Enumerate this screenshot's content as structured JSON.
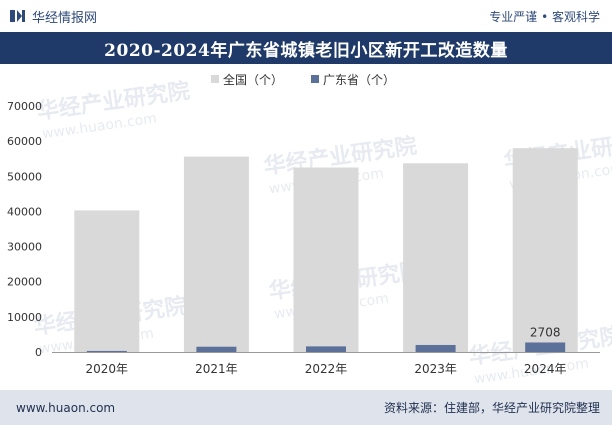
{
  "header": {
    "brand": "华经情报网",
    "slogan": "专业严谨 • 客观科学"
  },
  "title": "2020-2024年广东省城镇老旧小区新开工改造数量",
  "footer": {
    "website": "www.huaon.com",
    "source": "资料来源：住建部，华经产业研究院整理"
  },
  "watermark": {
    "name": "华经产业研究院",
    "url": "www.huaon.com"
  },
  "colors": {
    "national": "#d9d9d9",
    "guangdong": "#5b7199",
    "title_bg": "#1f3a68"
  },
  "chart_data": {
    "type": "bar",
    "categories": [
      "2020年",
      "2021年",
      "2022年",
      "2023年",
      "2024年"
    ],
    "series": [
      {
        "name": "全国（个）",
        "values": [
          40300,
          55600,
          52500,
          53700,
          58000
        ]
      },
      {
        "name": "广东省（个）",
        "values": [
          300,
          1500,
          1600,
          2000,
          2708
        ]
      }
    ],
    "data_labels": [
      {
        "series": 1,
        "index": 4,
        "text": "2708"
      }
    ],
    "ylim": [
      0,
      70000
    ],
    "yticks": [
      0,
      10000,
      20000,
      30000,
      40000,
      50000,
      60000,
      70000
    ],
    "legend_position": "top-center",
    "grid": false,
    "xlabel": "",
    "ylabel": ""
  }
}
